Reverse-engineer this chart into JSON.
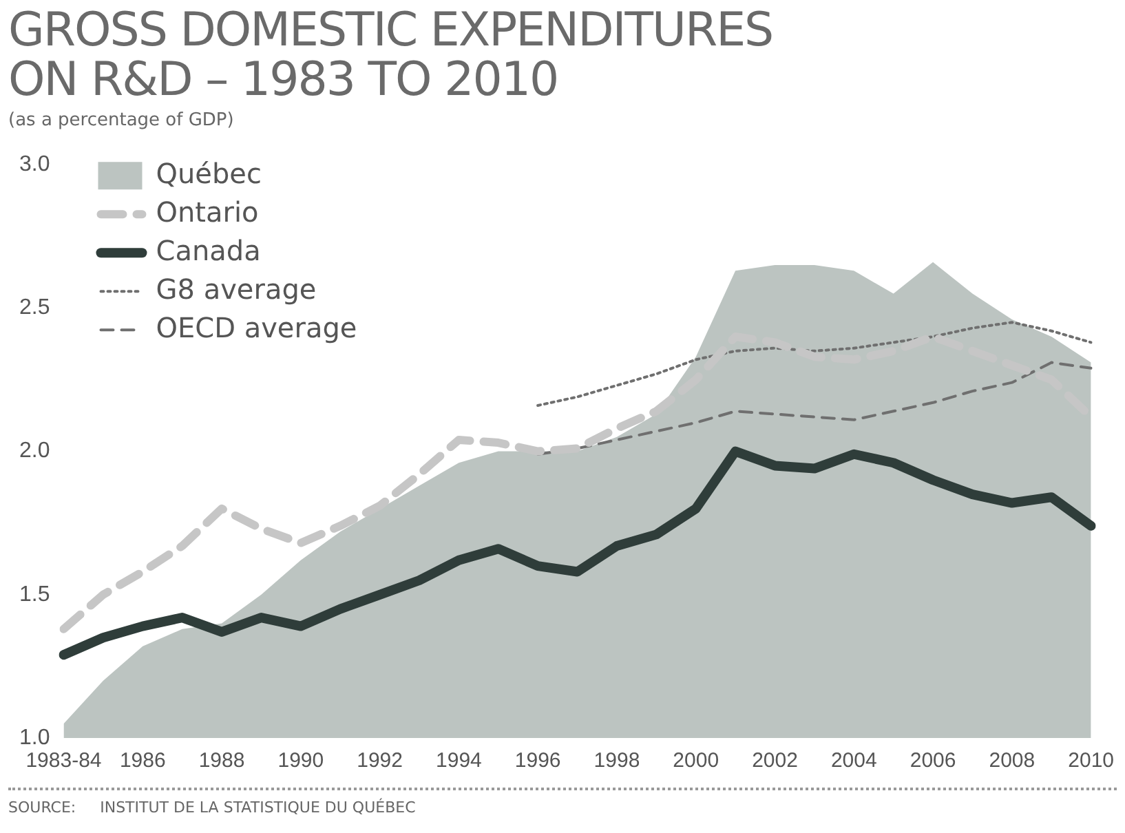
{
  "chart_data": {
    "type": "line",
    "title": "GROSS DOMESTIC EXPENDITURES ON R&D – 1983 TO 2010",
    "subtitle": "(as a percentage of GDP)",
    "annotations": [
      "SOURCE:     INSTITUT DE LA STATISTIQUE DU QUÉBEC"
    ],
    "categories": [
      "1983-84",
      null,
      "1986",
      null,
      "1988",
      null,
      "1990",
      null,
      "1992",
      null,
      "1994",
      null,
      "1996",
      null,
      "1998",
      null,
      "2000",
      null,
      "2002",
      null,
      "2004",
      null,
      "2006",
      null,
      "2008",
      null,
      "2010"
    ],
    "series": [
      {
        "name": "Québec",
        "type": "area",
        "color": "#bcc4c1",
        "values": [
          1.05,
          1.2,
          1.32,
          1.38,
          1.4,
          1.5,
          1.62,
          1.72,
          1.8,
          1.88,
          1.96,
          2.0,
          2.0,
          2.0,
          2.05,
          2.13,
          2.33,
          2.63,
          2.65,
          2.65,
          2.63,
          2.55,
          2.66,
          2.55,
          2.46,
          2.4,
          2.31
        ]
      },
      {
        "name": "Ontario",
        "type": "line",
        "color": "#c6c6c6",
        "line_style": "dashed",
        "values": [
          1.38,
          1.5,
          1.58,
          1.67,
          1.8,
          1.73,
          1.68,
          1.74,
          1.81,
          1.92,
          2.04,
          2.03,
          2.0,
          2.01,
          2.08,
          2.14,
          2.25,
          2.4,
          2.38,
          2.33,
          2.32,
          2.35,
          2.4,
          2.35,
          2.3,
          2.25,
          2.12
        ]
      },
      {
        "name": "Canada",
        "type": "line",
        "color": "#2f3d3a",
        "line_style": "solid",
        "values": [
          1.29,
          1.35,
          1.39,
          1.42,
          1.37,
          1.42,
          1.39,
          1.45,
          1.5,
          1.55,
          1.62,
          1.66,
          1.6,
          1.58,
          1.67,
          1.71,
          1.8,
          2.0,
          1.95,
          1.94,
          1.99,
          1.96,
          1.9,
          1.85,
          1.82,
          1.84,
          1.74
        ]
      },
      {
        "name": "G8 average",
        "type": "line",
        "color": "#6f6f6f",
        "line_style": "dotted",
        "values": [
          null,
          null,
          null,
          null,
          null,
          null,
          null,
          null,
          null,
          null,
          null,
          null,
          2.16,
          2.19,
          2.23,
          2.27,
          2.32,
          2.35,
          2.36,
          2.35,
          2.36,
          2.38,
          2.4,
          2.43,
          2.45,
          2.42,
          2.38
        ]
      },
      {
        "name": "OECD average",
        "type": "line",
        "color": "#6f6f6f",
        "line_style": "dashed",
        "values": [
          null,
          null,
          null,
          null,
          null,
          null,
          null,
          null,
          null,
          null,
          null,
          null,
          1.99,
          2.01,
          2.04,
          2.07,
          2.1,
          2.14,
          2.13,
          2.12,
          2.11,
          2.14,
          2.17,
          2.21,
          2.24,
          2.31,
          2.29
        ]
      }
    ],
    "ylim": [
      1,
      3
    ],
    "yticks": [
      {
        "value": 1,
        "label": "1.0"
      },
      {
        "value": 1.5,
        "label": "1.5"
      },
      {
        "value": 2,
        "label": "2.0"
      },
      {
        "value": 2.5,
        "label": "2.5"
      },
      {
        "value": 3,
        "label": "3.0"
      }
    ],
    "grid": false,
    "legend": "top left",
    "marker": "none"
  }
}
